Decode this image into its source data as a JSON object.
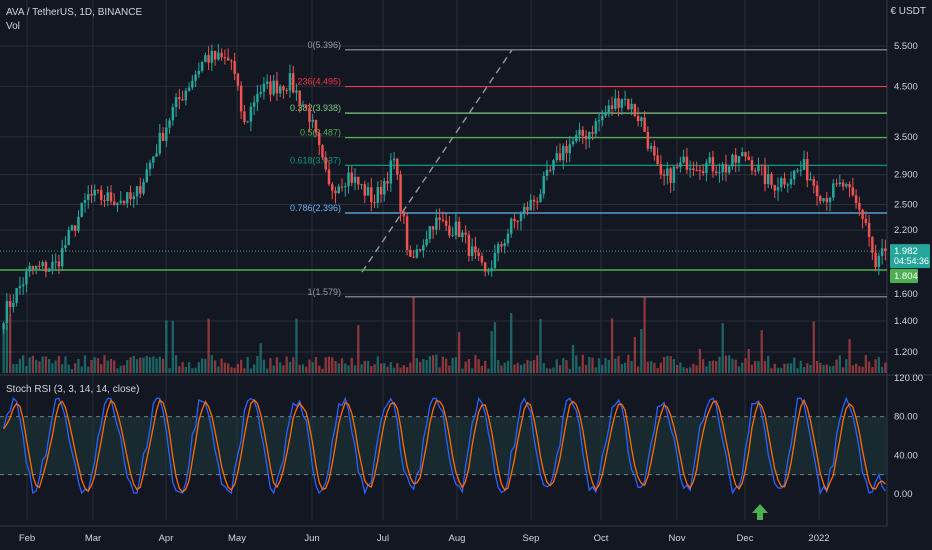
{
  "header": {
    "symbol": "AVA / TetherUS, 1D, BINANCE",
    "volume_label": "Vol",
    "currency": "€ USDT"
  },
  "colors": {
    "background": "#131722",
    "up": "#26a69a",
    "down": "#ef5350",
    "grid": "#2a2e39",
    "fib_0": "#9598a1",
    "fib_0236": "#f23645",
    "fib_0382": "#81c784",
    "fib_05": "#4caf50",
    "fib_0618": "#089981",
    "fib_0786": "#64b5f6",
    "fib_1": "#9598a1",
    "support": "#4caf50",
    "rsi_k": "#2962ff",
    "rsi_d": "#ff6d00",
    "rsi_band": "#1e3a3a",
    "arrow": "#4caf50"
  },
  "chart_data": [
    {
      "type": "candlestick",
      "title": "AVA / TetherUS, 1D, BINANCE",
      "y_scale": "log",
      "y_ticks": [
        "5.500",
        "4.500",
        "3.500",
        "2.900",
        "2.500",
        "2.200",
        "1.600",
        "1.400",
        "1.200"
      ],
      "y_tick_values": [
        5.5,
        4.5,
        3.5,
        2.9,
        2.5,
        2.2,
        1.6,
        1.4,
        1.2
      ],
      "x_ticks": [
        "Feb",
        "Mar",
        "Apr",
        "May",
        "Jun",
        "Jul",
        "Aug",
        "Sep",
        "Oct",
        "Nov",
        "Dec",
        "2022"
      ],
      "fib_levels": [
        {
          "label": "0(5.396)",
          "value": 5.396,
          "color_key": "fib_0"
        },
        {
          "label": "0.236(4.495)",
          "value": 4.495,
          "color_key": "fib_0236"
        },
        {
          "label": "0.382(3.938)",
          "value": 3.938,
          "color_key": "fib_0382"
        },
        {
          "label": "0.5(3.487)",
          "value": 3.487,
          "color_key": "fib_05"
        },
        {
          "label": "0.618(3.037)",
          "value": 3.037,
          "color_key": "fib_0618"
        },
        {
          "label": "0.786(2.396)",
          "value": 2.396,
          "color_key": "fib_0786"
        },
        {
          "label": "1(1.579)",
          "value": 1.579,
          "color_key": "fib_1"
        }
      ],
      "support_level": {
        "value": 1.804,
        "label": "1.804"
      },
      "last_price": {
        "value": 1.982,
        "label": "1.982",
        "countdown": "04:54:36"
      },
      "price_anchors": [
        {
          "day": 0,
          "p": 1.45
        },
        {
          "day": 8,
          "p": 1.8
        },
        {
          "day": 16,
          "p": 1.85
        },
        {
          "day": 26,
          "p": 2.6
        },
        {
          "day": 40,
          "p": 2.55
        },
        {
          "day": 52,
          "p": 4.0
        },
        {
          "day": 62,
          "p": 5.2
        },
        {
          "day": 70,
          "p": 5.1
        },
        {
          "day": 74,
          "p": 3.7
        },
        {
          "day": 78,
          "p": 4.4
        },
        {
          "day": 88,
          "p": 4.6
        },
        {
          "day": 94,
          "p": 3.9
        },
        {
          "day": 100,
          "p": 2.7
        },
        {
          "day": 106,
          "p": 2.9
        },
        {
          "day": 114,
          "p": 2.55
        },
        {
          "day": 120,
          "p": 3.1
        },
        {
          "day": 125,
          "p": 1.85
        },
        {
          "day": 132,
          "p": 2.3
        },
        {
          "day": 140,
          "p": 2.2
        },
        {
          "day": 148,
          "p": 1.75
        },
        {
          "day": 156,
          "p": 2.25
        },
        {
          "day": 164,
          "p": 2.6
        },
        {
          "day": 172,
          "p": 3.3
        },
        {
          "day": 180,
          "p": 3.6
        },
        {
          "day": 186,
          "p": 4.0
        },
        {
          "day": 190,
          "p": 4.3
        },
        {
          "day": 196,
          "p": 3.8
        },
        {
          "day": 202,
          "p": 2.8
        },
        {
          "day": 210,
          "p": 3.1
        },
        {
          "day": 222,
          "p": 3.0
        },
        {
          "day": 228,
          "p": 3.2
        },
        {
          "day": 236,
          "p": 2.75
        },
        {
          "day": 246,
          "p": 3.0
        },
        {
          "day": 252,
          "p": 2.6
        },
        {
          "day": 258,
          "p": 2.75
        },
        {
          "day": 265,
          "p": 2.3
        },
        {
          "day": 268,
          "p": 1.82
        },
        {
          "day": 270,
          "p": 1.98
        }
      ]
    },
    {
      "type": "line",
      "title": "Stoch RSI (3, 3, 14, 14, close)",
      "y_ticks": [
        "120.00",
        "80.00",
        "40.00",
        "0.00"
      ],
      "y_tick_values": [
        120,
        80,
        40,
        0
      ],
      "band": [
        20,
        80
      ],
      "series": [
        {
          "name": "",
          "color_key": "rsi_k"
        },
        {
          "name": "",
          "color_key": "rsi_d"
        }
      ]
    }
  ]
}
